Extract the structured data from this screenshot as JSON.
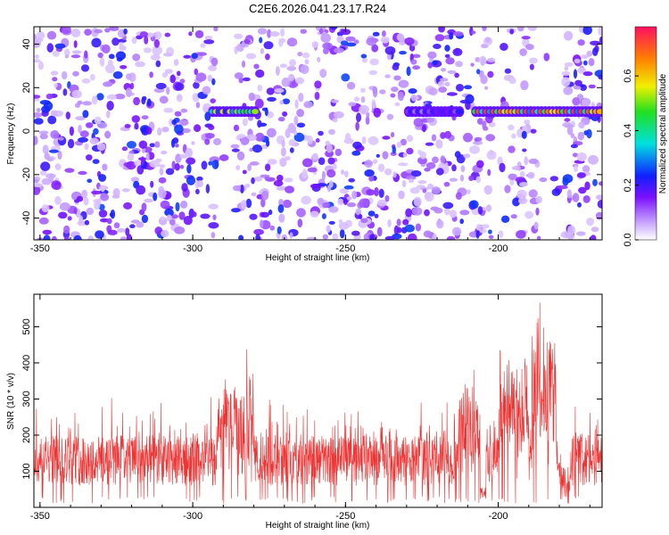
{
  "title": "C2E6.2026.041.23.17.R24",
  "chart_data": [
    {
      "type": "heatmap",
      "xlabel": "Height of straight line (km)",
      "ylabel": "Frequency (Hz)",
      "xlim": [
        -352,
        -166
      ],
      "ylim": [
        -50,
        48
      ],
      "xticks": [
        -350,
        -300,
        -250,
        -200
      ],
      "yticks": [
        -40,
        -20,
        0,
        20,
        40
      ],
      "colorbar": {
        "label": "Normalized spectral amplitude",
        "range": [
          0.0,
          0.78
        ],
        "ticks": [
          "0.0",
          "0.2",
          "0.4",
          "0.6"
        ],
        "tick_values": [
          0.0,
          0.2,
          0.4,
          0.6
        ]
      },
      "signal_bands": [
        {
          "x_start": -294,
          "x_end": -279,
          "freq": 9,
          "peak": 0.55
        },
        {
          "x_start": -230,
          "x_end": -212,
          "freq": 9,
          "peak": 0.22
        },
        {
          "x_start": -208,
          "x_end": -166,
          "freq": 9,
          "peak": 0.75
        }
      ]
    },
    {
      "type": "line",
      "xlabel": "Height of straight line (km)",
      "ylabel": "SNR (10 * v/v)",
      "xlim": [
        -352,
        -166
      ],
      "ylim": [
        0,
        590
      ],
      "xticks": [
        -350,
        -300,
        -250,
        -200
      ],
      "yticks": [
        100,
        200,
        300,
        400,
        500
      ],
      "color": "#ee3333",
      "series": [
        {
          "name": "SNR",
          "peak_x": -185,
          "peak_y": 590,
          "baseline_range": [
            60,
            200
          ]
        }
      ]
    }
  ]
}
